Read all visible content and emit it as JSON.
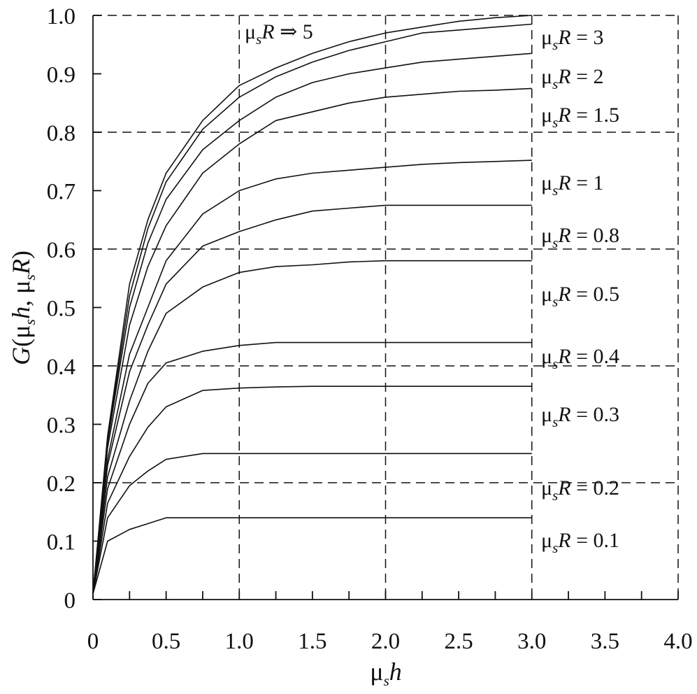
{
  "chart_data": {
    "type": "line",
    "title": "",
    "xlabel": "μsh",
    "ylabel": "G(μsh, μsR)",
    "xlim": [
      0,
      4.0
    ],
    "ylim": [
      0,
      1.0
    ],
    "grid": true,
    "x_ticks": [
      0,
      0.5,
      1.0,
      1.5,
      2.0,
      2.5,
      3.0,
      3.5,
      4.0
    ],
    "x_tick_labels": [
      "0",
      "0.5",
      "1.0",
      "1.5",
      "2.0",
      "2.5",
      "3.0",
      "3.5",
      "4.0"
    ],
    "x_minor_step": 0.25,
    "y_ticks": [
      0,
      0.1,
      0.2,
      0.3,
      0.4,
      0.5,
      0.6,
      0.7,
      0.8,
      0.9,
      1.0
    ],
    "y_tick_labels": [
      "0",
      "0.1",
      "0.2",
      "0.3",
      "0.4",
      "0.5",
      "0.6",
      "0.7",
      "0.8",
      "0.9",
      "1.0"
    ],
    "x_grid": [
      1.0,
      2.0,
      3.0,
      4.0
    ],
    "y_grid": [
      0.2,
      0.4,
      0.6,
      0.8,
      1.0
    ],
    "x": [
      0,
      0.1,
      0.25,
      0.375,
      0.5,
      0.75,
      1.0,
      1.25,
      1.5,
      1.75,
      2.0,
      2.25,
      2.5,
      2.75,
      3.0
    ],
    "series": [
      {
        "name": "μsR ⇒ 5",
        "values": [
          0.01,
          0.28,
          0.54,
          0.65,
          0.73,
          0.82,
          0.88,
          0.91,
          0.935,
          0.955,
          0.97,
          0.98,
          0.99,
          0.996,
          1.0
        ]
      },
      {
        "name": "μsR = 3",
        "values": [
          0.01,
          0.275,
          0.52,
          0.635,
          0.715,
          0.805,
          0.86,
          0.895,
          0.92,
          0.94,
          0.955,
          0.97,
          0.975,
          0.98,
          0.985
        ]
      },
      {
        "name": "μsR = 2",
        "values": [
          0.01,
          0.27,
          0.5,
          0.61,
          0.685,
          0.77,
          0.82,
          0.86,
          0.885,
          0.9,
          0.91,
          0.92,
          0.925,
          0.93,
          0.935
        ]
      },
      {
        "name": "μsR = 1.5",
        "values": [
          0.01,
          0.26,
          0.47,
          0.57,
          0.64,
          0.73,
          0.78,
          0.82,
          0.835,
          0.85,
          0.86,
          0.865,
          0.87,
          0.872,
          0.875
        ]
      },
      {
        "name": "μsR = 1",
        "values": [
          0.01,
          0.24,
          0.42,
          0.5,
          0.58,
          0.66,
          0.7,
          0.72,
          0.73,
          0.735,
          0.74,
          0.745,
          0.748,
          0.75,
          0.752
        ]
      },
      {
        "name": "μsR = 0.8",
        "values": [
          0.01,
          0.23,
          0.39,
          0.47,
          0.54,
          0.605,
          0.63,
          0.65,
          0.665,
          0.67,
          0.675,
          0.675,
          0.675,
          0.675,
          0.675
        ]
      },
      {
        "name": "μsR = 0.5",
        "values": [
          0.01,
          0.21,
          0.34,
          0.425,
          0.49,
          0.535,
          0.56,
          0.57,
          0.573,
          0.578,
          0.58,
          0.58,
          0.58,
          0.58,
          0.58
        ]
      },
      {
        "name": "μsR = 0.4",
        "values": [
          0.01,
          0.19,
          0.3,
          0.37,
          0.405,
          0.425,
          0.435,
          0.44,
          0.44,
          0.44,
          0.44,
          0.44,
          0.44,
          0.44,
          0.44
        ]
      },
      {
        "name": "μsR = 0.3",
        "values": [
          0.01,
          0.165,
          0.245,
          0.295,
          0.33,
          0.358,
          0.362,
          0.364,
          0.365,
          0.365,
          0.365,
          0.365,
          0.365,
          0.365,
          0.365
        ]
      },
      {
        "name": "μsR = 0.2",
        "values": [
          0.01,
          0.14,
          0.195,
          0.22,
          0.24,
          0.25,
          0.25,
          0.25,
          0.25,
          0.25,
          0.25,
          0.25,
          0.25,
          0.25,
          0.25
        ]
      },
      {
        "name": "μsR = 0.1",
        "values": [
          0.01,
          0.1,
          0.12,
          0.13,
          0.14,
          0.14,
          0.14,
          0.14,
          0.14,
          0.14,
          0.14,
          0.14,
          0.14,
          0.14,
          0.14
        ]
      }
    ]
  }
}
